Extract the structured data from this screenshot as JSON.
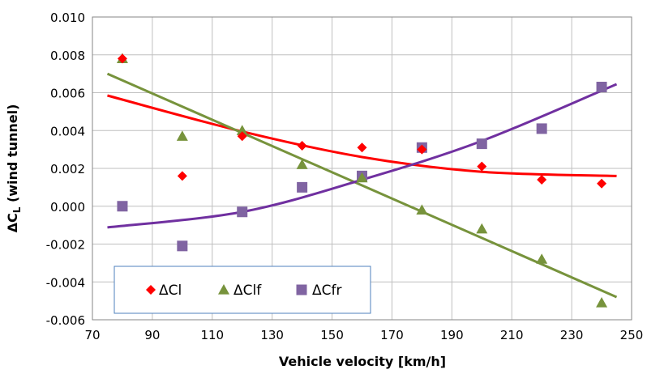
{
  "chart_data": {
    "type": "scatter",
    "title": "",
    "xlabel": "Vehicle velocity [km/h]",
    "ylabel_main": "ΔC",
    "ylabel_sub": "L",
    "ylabel_rest": " (wind tunnel)",
    "xlim": [
      70,
      250
    ],
    "ylim": [
      -0.006,
      0.01
    ],
    "x_ticks": [
      70,
      90,
      110,
      130,
      150,
      170,
      190,
      210,
      230,
      250
    ],
    "x_tick_labels": [
      "70",
      "90",
      "110",
      "130",
      "150",
      "170",
      "190",
      "210",
      "230",
      "250"
    ],
    "y_ticks": [
      -0.006,
      -0.004,
      -0.002,
      0.0,
      0.002,
      0.004,
      0.006,
      0.008,
      0.01
    ],
    "y_tick_labels": [
      "-0.006",
      "-0.004",
      "-0.002",
      "0.000",
      "0.002",
      "0.004",
      "0.006",
      "0.008",
      "0.010"
    ],
    "grid": true,
    "legend_position": "bottom-left",
    "series": [
      {
        "name": "ΔCl",
        "marker": "diamond",
        "color": "#ff0000",
        "x": [
          80,
          100,
          120,
          140,
          160,
          180,
          200,
          220,
          240
        ],
        "y": [
          0.0078,
          0.0016,
          0.0037,
          0.0032,
          0.0031,
          0.003,
          0.0021,
          0.0014,
          0.0012
        ],
        "trend": {
          "kind": "poly2",
          "x_range": [
            75,
            245
          ],
          "points": [
            [
              75,
              0.00585
            ],
            [
              120,
              0.00395
            ],
            [
              160,
              0.0026
            ],
            [
              200,
              0.00182
            ],
            [
              245,
              0.0016
            ]
          ]
        }
      },
      {
        "name": "ΔClf",
        "marker": "triangle",
        "color": "#77933c",
        "x": [
          80,
          100,
          120,
          140,
          160,
          180,
          200,
          220,
          240
        ],
        "y": [
          0.0078,
          0.0037,
          0.004,
          0.0022,
          0.0015,
          -0.0002,
          -0.0012,
          -0.0028,
          -0.0051
        ],
        "trend": {
          "kind": "linear",
          "x_range": [
            75,
            245
          ],
          "points": [
            [
              75,
              0.007
            ],
            [
              245,
              -0.0048
            ]
          ]
        }
      },
      {
        "name": "ΔCfr",
        "marker": "square",
        "color": "#8064a2",
        "x": [
          80,
          100,
          120,
          140,
          160,
          180,
          200,
          220,
          240
        ],
        "y": [
          0.0,
          -0.0021,
          -0.0003,
          0.001,
          0.0016,
          0.0031,
          0.0033,
          0.0041,
          0.0063
        ],
        "trend": {
          "kind": "poly2",
          "x_range": [
            75,
            245
          ],
          "points": [
            [
              75,
              -0.00112
            ],
            [
              120,
              -0.0003
            ],
            [
              160,
              0.0014
            ],
            [
              200,
              0.00345
            ],
            [
              245,
              0.00645
            ]
          ]
        }
      }
    ]
  },
  "colors": {
    "red_series": "#ff0000",
    "red_trend": "#ff0000",
    "green_series": "#77933c",
    "green_trend": "#77933c",
    "purple_series": "#8064a2",
    "purple_trend": "#7030a0",
    "grid": "#bfbfbf",
    "axis": "#868686",
    "legend_border": "#4f81bd"
  }
}
